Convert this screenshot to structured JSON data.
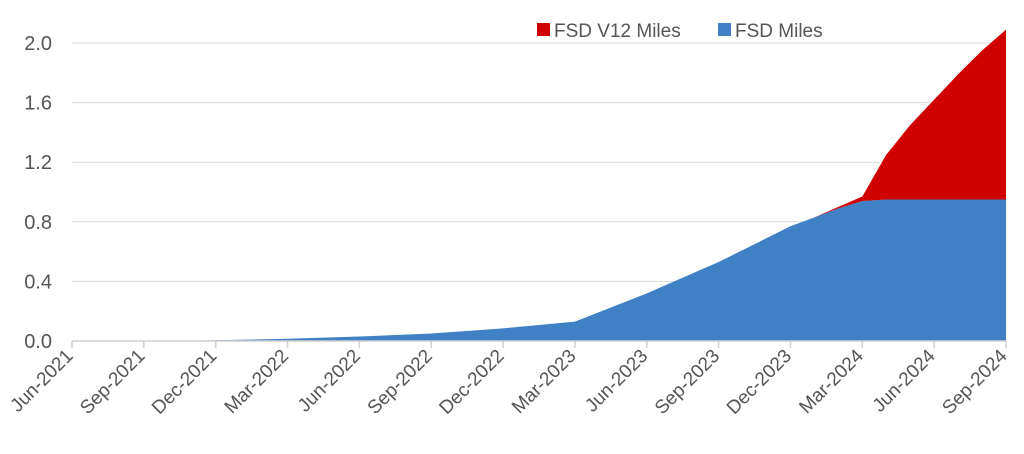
{
  "chart_data": {
    "type": "area",
    "stacked": true,
    "title": "",
    "xlabel": "",
    "ylabel": "",
    "ylim": [
      0,
      2.0
    ],
    "yticks": [
      "0.0",
      "0.4",
      "0.8",
      "1.2",
      "1.6",
      "2.0"
    ],
    "ytick_values": [
      0,
      0.4,
      0.8,
      1.2,
      1.6,
      2.0
    ],
    "xtick_labels": [
      "Jun-2021",
      "Sep-2021",
      "Dec-2021",
      "Mar-2022",
      "Jun-2022",
      "Sep-2022",
      "Dec-2022",
      "Mar-2023",
      "Jun-2023",
      "Sep-2023",
      "Dec-2023",
      "Mar-2024",
      "Jun-2024",
      "Sep-2024"
    ],
    "x_months_from_jun_2021": [
      0,
      3,
      6,
      9,
      12,
      15,
      18,
      21,
      24,
      27,
      30,
      31,
      32,
      33,
      34,
      35,
      36,
      37,
      38,
      39
    ],
    "grid": "horizontal",
    "legend_position": "top-right",
    "series": [
      {
        "name": "FSD Miles",
        "color": "#4080C4",
        "values": [
          0,
          0,
          0.005,
          0.015,
          0.03,
          0.05,
          0.085,
          0.13,
          0.32,
          0.53,
          0.77,
          0.83,
          0.89,
          0.94,
          0.95,
          0.95,
          0.95,
          0.95,
          0.95,
          0.95
        ]
      },
      {
        "name": "FSD V12 Miles",
        "color": "#D00000",
        "values": [
          0,
          0,
          0,
          0,
          0,
          0,
          0,
          0,
          0,
          0,
          0,
          0,
          0.01,
          0.03,
          0.3,
          0.5,
          0.67,
          0.84,
          1.0,
          1.14
        ]
      }
    ],
    "legend_order": [
      "FSD V12 Miles",
      "FSD Miles"
    ]
  }
}
